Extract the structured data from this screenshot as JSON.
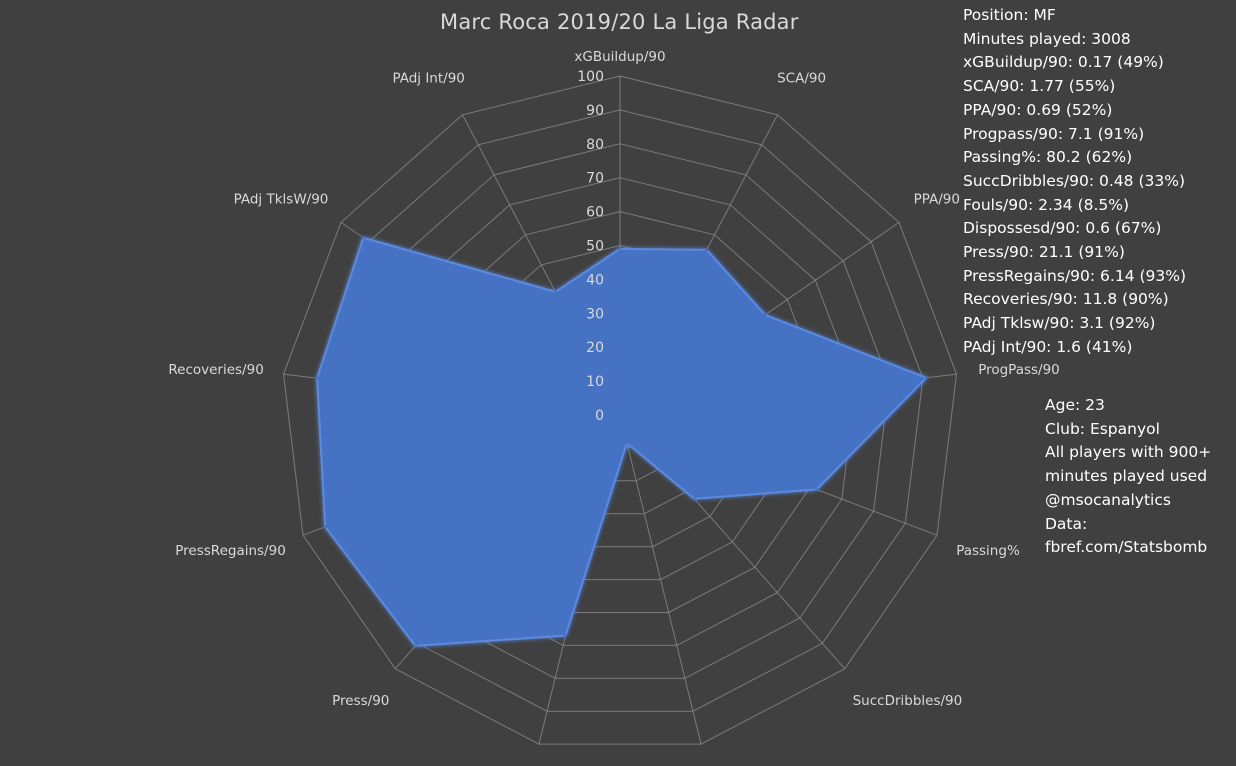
{
  "chart_data": {
    "type": "radar",
    "title": "Marc Roca 2019/20 La Liga Radar",
    "axes": [
      "xGBuildup/90",
      "SCA/90",
      "PPA/90",
      "ProgPass/90",
      "Passing%",
      "SuccDribbles/90",
      "Fouls/90",
      "Dispossesd/90",
      "Press/90",
      "PressRegains/90",
      "Recoveries/90",
      "PAdj TklsW/90",
      "PAdj Int/90"
    ],
    "values": [
      49,
      55,
      52,
      91,
      62,
      33,
      8.5,
      67,
      91,
      93,
      90,
      92,
      41
    ],
    "rlim": [
      0,
      100
    ],
    "radial_ticks": [
      "0",
      "10",
      "20",
      "30",
      "40",
      "50",
      "60",
      "70",
      "80",
      "90",
      "100"
    ],
    "grid": true,
    "colors": {
      "fill": "#4472c4",
      "grid": "#8a8a8a",
      "text": "#d9d9d9",
      "background": "#404040"
    }
  },
  "stats_lines": [
    "Position: MF",
    "Minutes played: 3008",
    "xGBuildup/90: 0.17 (49%)",
    "SCA/90: 1.77 (55%)",
    "PPA/90: 0.69 (52%)",
    "Progpass/90: 7.1 (91%)",
    "Passing%: 80.2 (62%)",
    "SuccDribbles/90: 0.48 (33%)",
    "Fouls/90: 2.34 (8.5%)",
    "Dispossesd/90: 0.6 (67%)",
    "Press/90: 21.1 (91%)",
    "PressRegains/90: 6.14 (93%)",
    "Recoveries/90: 11.8 (90%)",
    "PAdj Tklsw/90: 3.1 (92%)",
    "PAdj Int/90: 1.6 (41%)"
  ],
  "info_lines": [
    "Age: 23",
    "Club: Espanyol",
    "All players with 900+",
    "minutes played used",
    "@msocanalytics",
    "Data:",
    "fbref.com/Statsbomb"
  ]
}
